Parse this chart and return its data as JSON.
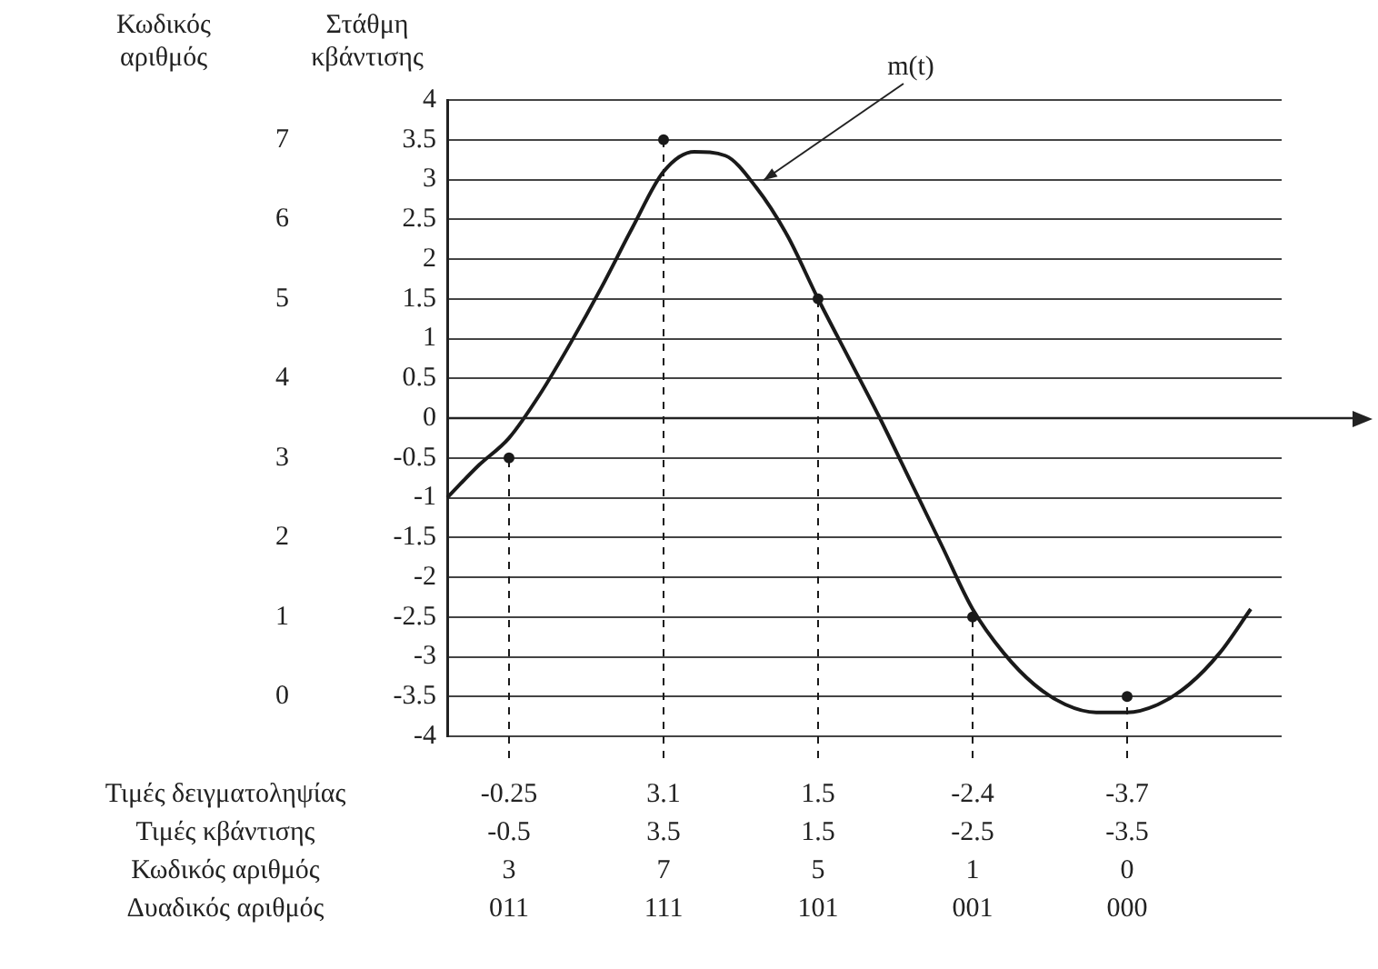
{
  "chart_data": {
    "type": "line",
    "ylabel": "Στάθμη κβάντισης",
    "y2label": "Κωδικός αριθμός",
    "categories": [
      null,
      null,
      null,
      null,
      null,
      null,
      null,
      null,
      null,
      null,
      null,
      null,
      null,
      null,
      null,
      null,
      null,
      null,
      null,
      null,
      null,
      null,
      null,
      null,
      null,
      null,
      null,
      null
    ],
    "ylim": [
      -4,
      4
    ],
    "yticks": [
      -4,
      -3.5,
      -3,
      -2.5,
      -2,
      -1.5,
      -1,
      -0.5,
      0,
      0.5,
      1,
      1.5,
      2,
      2.5,
      3,
      3.5,
      4
    ],
    "y2lim": [
      -0.5,
      7.5
    ],
    "y2ticks": [
      0,
      1,
      2,
      3,
      4,
      5,
      6,
      7
    ],
    "grid": "y",
    "legend": false,
    "series": [
      {
        "name": "m(t)",
        "color": "#1a1a1a",
        "marker": "none",
        "values": [
          -1.0,
          -0.6,
          -0.25,
          0.3,
          0.95,
          1.65,
          2.4,
          3.1,
          3.35,
          3.3,
          2.9,
          2.3,
          1.5,
          0.75,
          0.0,
          -0.8,
          -1.6,
          -2.4,
          -2.95,
          -3.35,
          -3.6,
          -3.7,
          -3.7,
          -3.6,
          -3.35,
          -2.95,
          -2.4,
          null
        ],
        "value_labels": [
          null,
          null,
          "-0.25",
          null,
          null,
          null,
          null,
          "3.1",
          null,
          null,
          null,
          null,
          "1.5",
          null,
          null,
          null,
          null,
          "-2.4",
          null,
          null,
          null,
          null,
          "-3.7",
          null,
          null,
          null,
          null,
          null
        ]
      },
      {
        "type": "lollipop",
        "color": "#1a1a1a",
        "marker": "circle",
        "line_style": "dashed",
        "values": [
          null,
          null,
          -0.5,
          null,
          null,
          null,
          null,
          3.5,
          null,
          null,
          null,
          null,
          1.5,
          null,
          null,
          null,
          null,
          -2.5,
          null,
          null,
          null,
          null,
          -3.5,
          null,
          null,
          null,
          null,
          null
        ],
        "value_labels": [
          null,
          null,
          "-0.5",
          null,
          null,
          null,
          null,
          "3.5",
          null,
          null,
          null,
          null,
          "1.5",
          null,
          null,
          null,
          null,
          "-2.5",
          null,
          null,
          null,
          null,
          "-3.5",
          null,
          null,
          null,
          null,
          null
        ]
      }
    ],
    "annotations": [
      "Τιμές δειγματοληψίας",
      "Τιμές κβάντισης",
      "Κωδικός αριθμός",
      "Δυαδικός αριθμός",
      "3",
      "7",
      "5",
      "1",
      "0",
      "011",
      "111",
      "101",
      "001",
      "000"
    ]
  }
}
